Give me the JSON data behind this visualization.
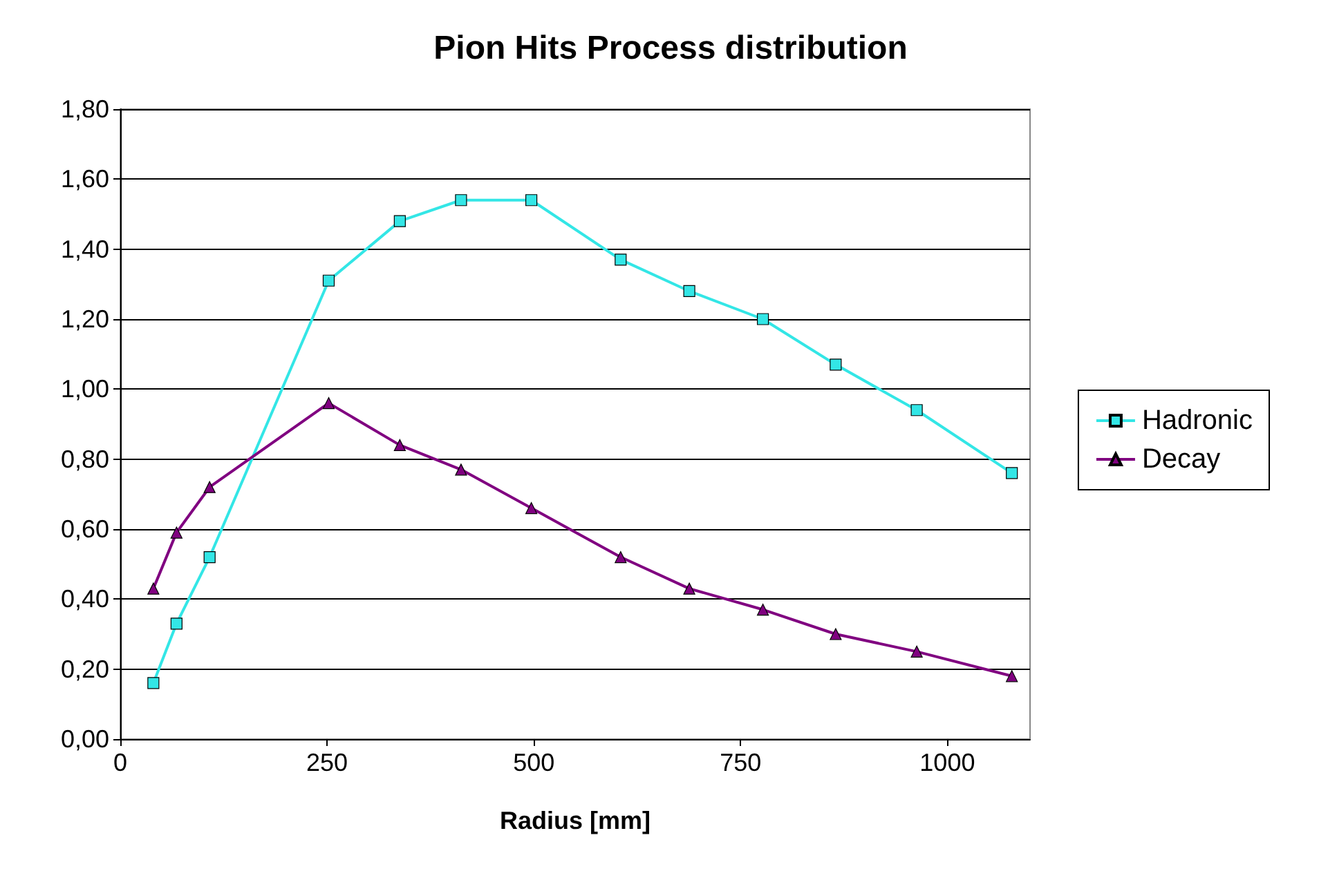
{
  "chart_data": {
    "type": "line",
    "title": "Pion Hits Process distribution",
    "xlabel": "Radius [mm]",
    "xlim": [
      0,
      1100
    ],
    "xticks": [
      0,
      250,
      500,
      750,
      1000
    ],
    "ylim": [
      0,
      1.8
    ],
    "yticks": [
      {
        "value": 0,
        "label": "0,00"
      },
      {
        "value": 0.2,
        "label": "0,20"
      },
      {
        "value": 0.4,
        "label": "0,40"
      },
      {
        "value": 0.6,
        "label": "0,60"
      },
      {
        "value": 0.8,
        "label": "0,80"
      },
      {
        "value": 1.0,
        "label": "1,00"
      },
      {
        "value": 1.2,
        "label": "1,20"
      },
      {
        "value": 1.4,
        "label": "1,40"
      },
      {
        "value": 1.6,
        "label": "1,60"
      },
      {
        "value": 1.8,
        "label": "1,80"
      }
    ],
    "grid": "y",
    "legend": "right",
    "x": [
      40,
      68,
      108,
      252,
      338,
      412,
      497,
      605,
      688,
      777,
      865,
      963,
      1078
    ],
    "series": [
      {
        "name": "Hadronic",
        "color": "#33e6e6",
        "marker": "square",
        "values": [
          0.16,
          0.33,
          0.52,
          1.31,
          1.48,
          1.54,
          1.54,
          1.37,
          1.28,
          1.2,
          1.07,
          0.94,
          0.76
        ]
      },
      {
        "name": "Decay",
        "color": "#800080",
        "marker": "triangle",
        "values": [
          0.43,
          0.59,
          0.72,
          0.96,
          0.84,
          0.77,
          0.66,
          0.52,
          0.43,
          0.37,
          0.3,
          0.25,
          0.18
        ]
      }
    ]
  }
}
